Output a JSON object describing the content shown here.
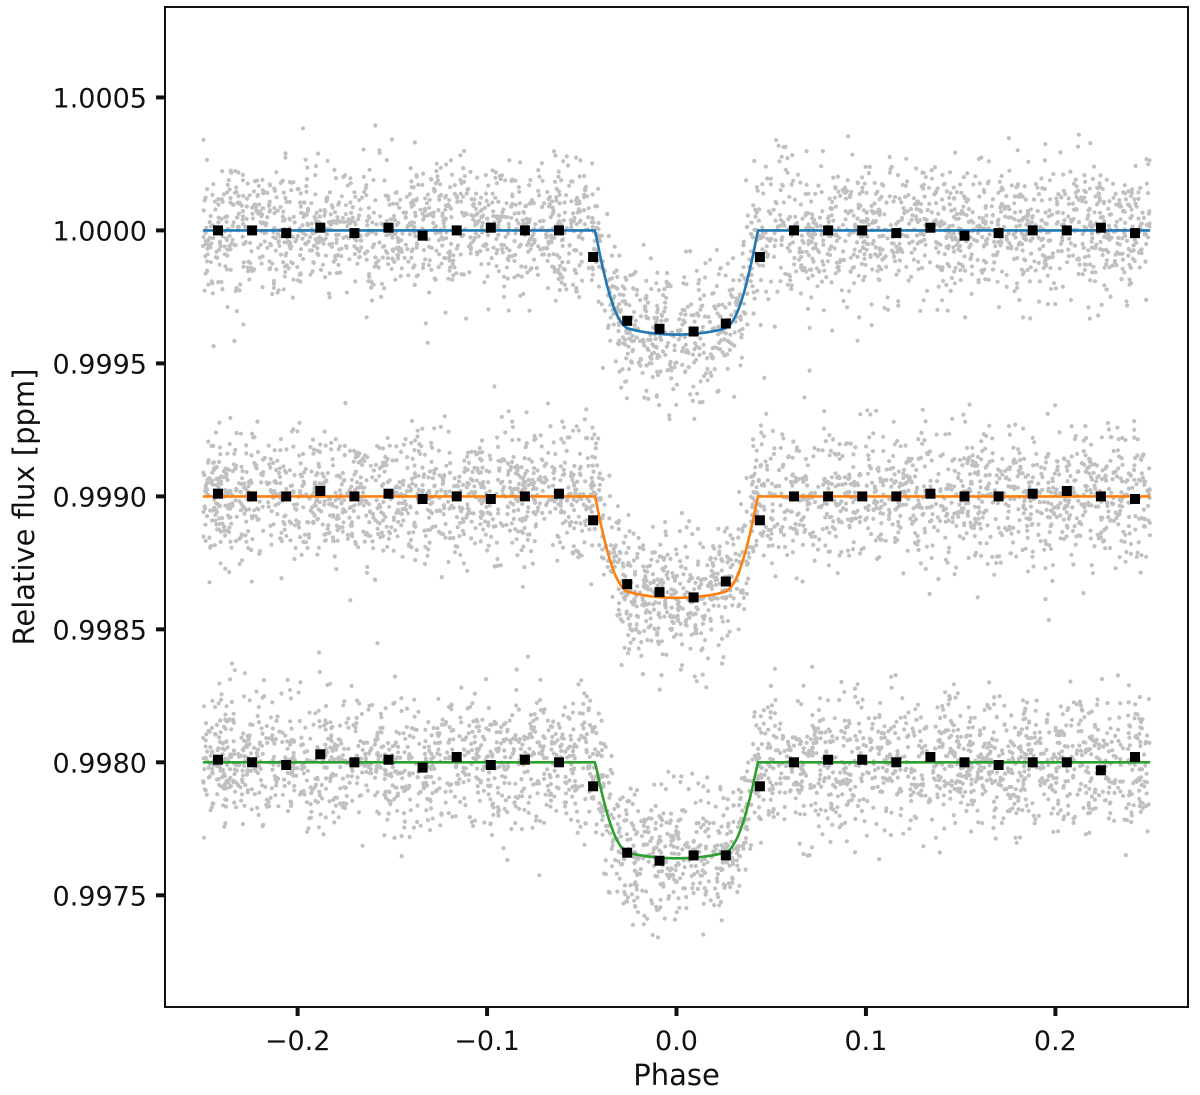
{
  "chart_data": {
    "type": "scatter",
    "title": "",
    "xlabel": "Phase",
    "ylabel": "Relative flux [ppm]",
    "xlim": [
      -0.27,
      0.27
    ],
    "ylim": [
      0.99708,
      1.00084
    ],
    "x_ticks": [
      -0.2,
      -0.1,
      0.0,
      0.1,
      0.2
    ],
    "x_tick_labels": [
      "−0.2",
      "−0.1",
      "0.0",
      "0.1",
      "0.2"
    ],
    "y_ticks": [
      0.9975,
      0.998,
      0.9985,
      0.999,
      0.9995,
      1.0,
      1.0005
    ],
    "y_tick_labels": [
      "0.9975",
      "0.9980",
      "0.9985",
      "0.9990",
      "0.9995",
      "1.0000",
      "1.0005"
    ],
    "grid": false,
    "legend": "none",
    "raw_points_color": "#c0c0c0",
    "binned_color": "#000000",
    "series": [
      {
        "color": "#1f77b4",
        "baseline": 1.0,
        "model_depth": 0.00038,
        "ingress_start": -0.043,
        "egress_end": 0.043,
        "raw_scatter_sd": 0.000125,
        "binned_x": [
          -0.242,
          -0.224,
          -0.206,
          -0.188,
          -0.17,
          -0.152,
          -0.134,
          -0.116,
          -0.098,
          -0.08,
          -0.062,
          -0.044,
          -0.026,
          -0.009,
          0.009,
          0.026,
          0.044,
          0.062,
          0.08,
          0.098,
          0.116,
          0.134,
          0.152,
          0.17,
          0.188,
          0.206,
          0.224,
          0.242
        ],
        "binned_y": [
          1.0,
          1.0,
          0.99999,
          1.00001,
          0.99999,
          1.00001,
          0.99998,
          1.0,
          1.00001,
          1.0,
          1.0,
          0.9999,
          0.99966,
          0.99963,
          0.99962,
          0.99965,
          0.9999,
          1.0,
          1.0,
          1.0,
          0.99999,
          1.00001,
          0.99998,
          0.99999,
          1.0,
          1.0,
          1.00001,
          0.99999
        ]
      },
      {
        "color": "#ff7f0e",
        "baseline": 0.999,
        "model_depth": 0.00037,
        "ingress_start": -0.043,
        "egress_end": 0.043,
        "raw_scatter_sd": 0.000125,
        "binned_x": [
          -0.242,
          -0.224,
          -0.206,
          -0.188,
          -0.17,
          -0.152,
          -0.134,
          -0.116,
          -0.098,
          -0.08,
          -0.062,
          -0.044,
          -0.026,
          -0.009,
          0.009,
          0.026,
          0.044,
          0.062,
          0.08,
          0.098,
          0.116,
          0.134,
          0.152,
          0.17,
          0.188,
          0.206,
          0.224,
          0.242
        ],
        "binned_y": [
          0.99901,
          0.999,
          0.999,
          0.99902,
          0.999,
          0.99901,
          0.99899,
          0.999,
          0.99899,
          0.999,
          0.99901,
          0.99891,
          0.99867,
          0.99864,
          0.99862,
          0.99868,
          0.99891,
          0.999,
          0.999,
          0.999,
          0.999,
          0.99901,
          0.999,
          0.999,
          0.99901,
          0.99902,
          0.999,
          0.99899
        ]
      },
      {
        "color": "#2ca02c",
        "baseline": 0.998,
        "model_depth": 0.00035,
        "ingress_start": -0.043,
        "egress_end": 0.043,
        "raw_scatter_sd": 0.000125,
        "binned_x": [
          -0.242,
          -0.224,
          -0.206,
          -0.188,
          -0.17,
          -0.152,
          -0.134,
          -0.116,
          -0.098,
          -0.08,
          -0.062,
          -0.044,
          -0.026,
          -0.009,
          0.009,
          0.026,
          0.044,
          0.062,
          0.08,
          0.098,
          0.116,
          0.134,
          0.152,
          0.17,
          0.188,
          0.206,
          0.224,
          0.242
        ],
        "binned_y": [
          0.99801,
          0.998,
          0.99799,
          0.99803,
          0.998,
          0.99801,
          0.99798,
          0.99802,
          0.99799,
          0.99801,
          0.998,
          0.99791,
          0.99766,
          0.99763,
          0.99765,
          0.99765,
          0.99791,
          0.998,
          0.99801,
          0.99801,
          0.998,
          0.99802,
          0.998,
          0.99799,
          0.998,
          0.998,
          0.99797,
          0.99802
        ]
      }
    ]
  }
}
